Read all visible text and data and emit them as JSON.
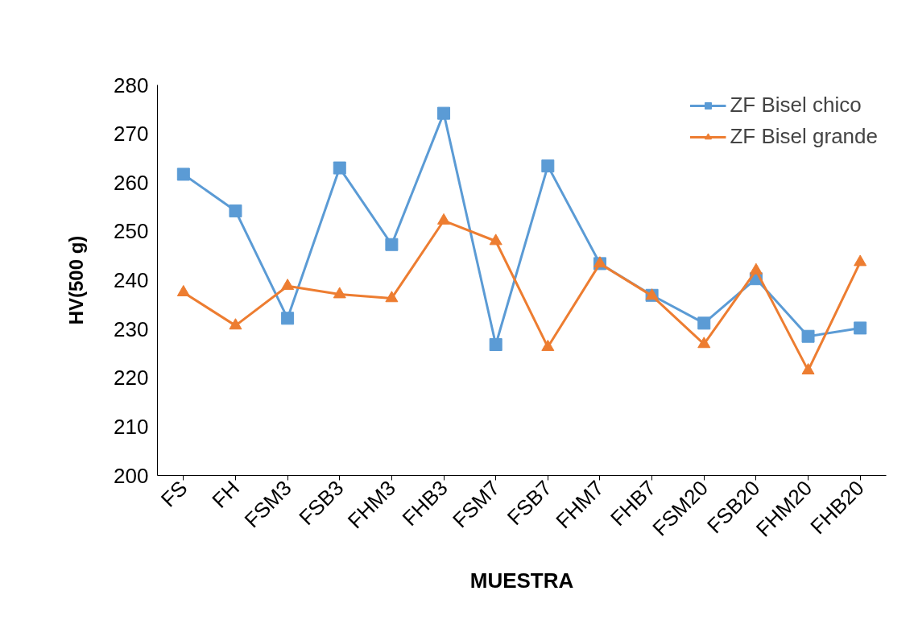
{
  "chart_data": {
    "type": "line",
    "xlabel": "MUESTRA",
    "ylabel": "HV(500 g)",
    "categories": [
      "FS",
      "FH",
      "FSM3",
      "FSB3",
      "FHM3",
      "FHB3",
      "FSM7",
      "FSB7",
      "FHM7",
      "FHB7",
      "FSM20",
      "FSB20",
      "FHM20",
      "FHB20"
    ],
    "series": [
      {
        "name": "ZF Bisel chico",
        "color": "#5b9bd5",
        "marker": "square",
        "values": [
          261.7,
          254.2,
          232.2,
          263,
          247.3,
          274.2,
          226.8,
          263.4,
          243.4,
          236.9,
          231.2,
          240.3,
          228.5,
          230.2
        ]
      },
      {
        "name": "ZF Bisel grande",
        "color": "#ed7d31",
        "marker": "triangle",
        "values": [
          237.5,
          230.7,
          238.8,
          237.1,
          236.3,
          252.2,
          248,
          226.3,
          243.4,
          236.8,
          226.9,
          242,
          221.5,
          243.7
        ]
      }
    ],
    "ylim": [
      200,
      280
    ],
    "yticks": [
      200,
      210,
      220,
      230,
      240,
      250,
      260,
      270,
      280
    ],
    "grid": false,
    "legend": "top right",
    "line_style": "solid"
  }
}
